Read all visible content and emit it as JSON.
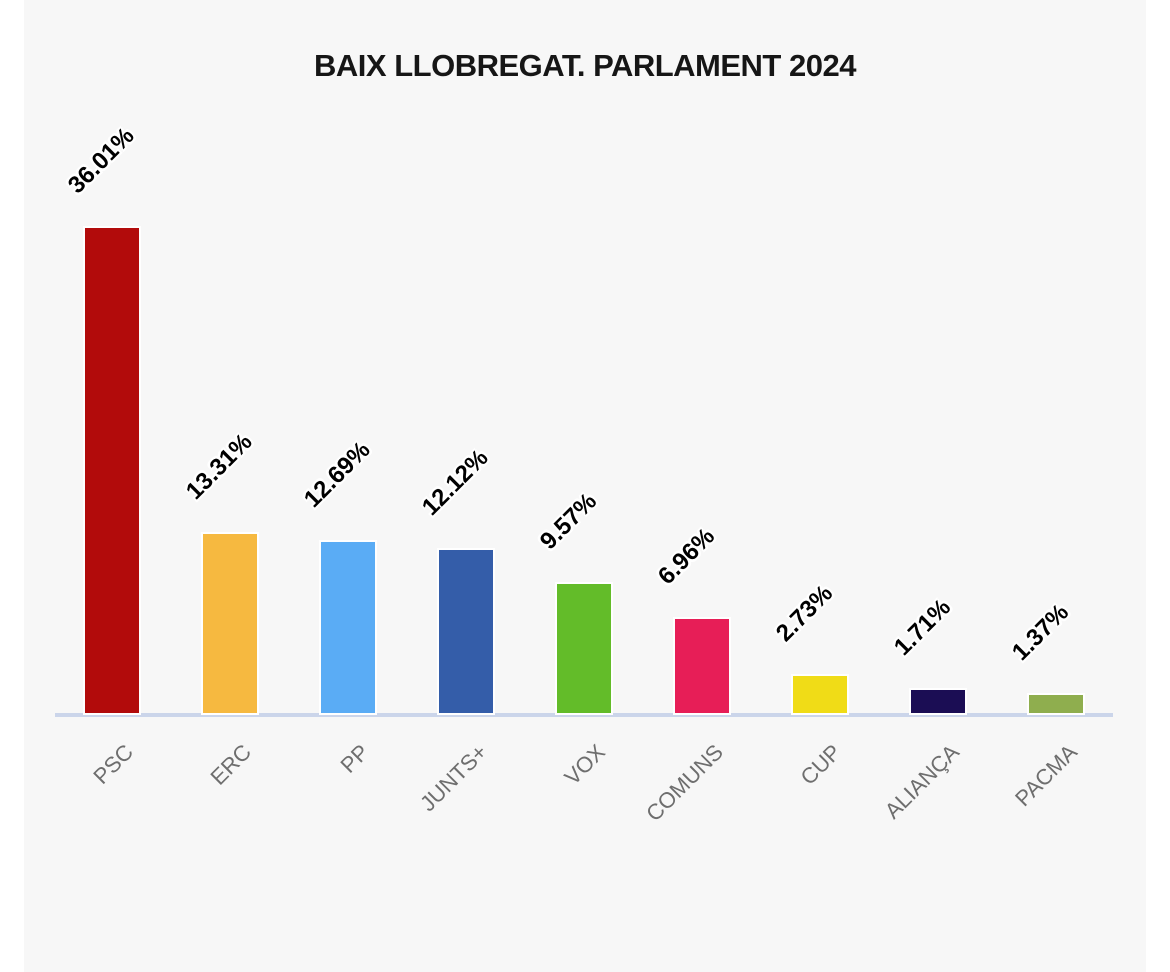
{
  "title": "BAIX LLOBREGAT. PARLAMENT 2024",
  "colors": {
    "canvas_background": "#f7f7f7",
    "page_margins": "#ffffff",
    "axis_line": "#cbd5ea",
    "title_text": "#161616",
    "value_label_text": "#000000",
    "category_label_text": "#6e6e6e"
  },
  "chart_data": {
    "type": "bar",
    "title": "BAIX LLOBREGAT. PARLAMENT 2024",
    "categories": [
      "PSC",
      "ERC",
      "PP",
      "JUNTS+",
      "VOX",
      "COMUNS",
      "CUP",
      "ALIANÇA",
      "PACMA"
    ],
    "values": [
      36.01,
      13.31,
      12.69,
      12.12,
      9.57,
      6.96,
      2.73,
      1.71,
      1.37
    ],
    "value_labels": [
      "36.01%",
      "13.31%",
      "12.69%",
      "12.12%",
      "9.57%",
      "6.96%",
      "2.73%",
      "1.71%",
      "1.37%"
    ],
    "bar_colors": [
      "#b20b0b",
      "#f6b940",
      "#5aacf5",
      "#345da9",
      "#63bc29",
      "#e71e57",
      "#f0dc17",
      "#1b0d54",
      "#8fae4e"
    ],
    "xlabel": "",
    "ylabel": "",
    "ylim": [
      0,
      38
    ],
    "grid": false,
    "legend": false,
    "value_label_rotation_deg": -45,
    "category_label_rotation_deg": -45
  }
}
